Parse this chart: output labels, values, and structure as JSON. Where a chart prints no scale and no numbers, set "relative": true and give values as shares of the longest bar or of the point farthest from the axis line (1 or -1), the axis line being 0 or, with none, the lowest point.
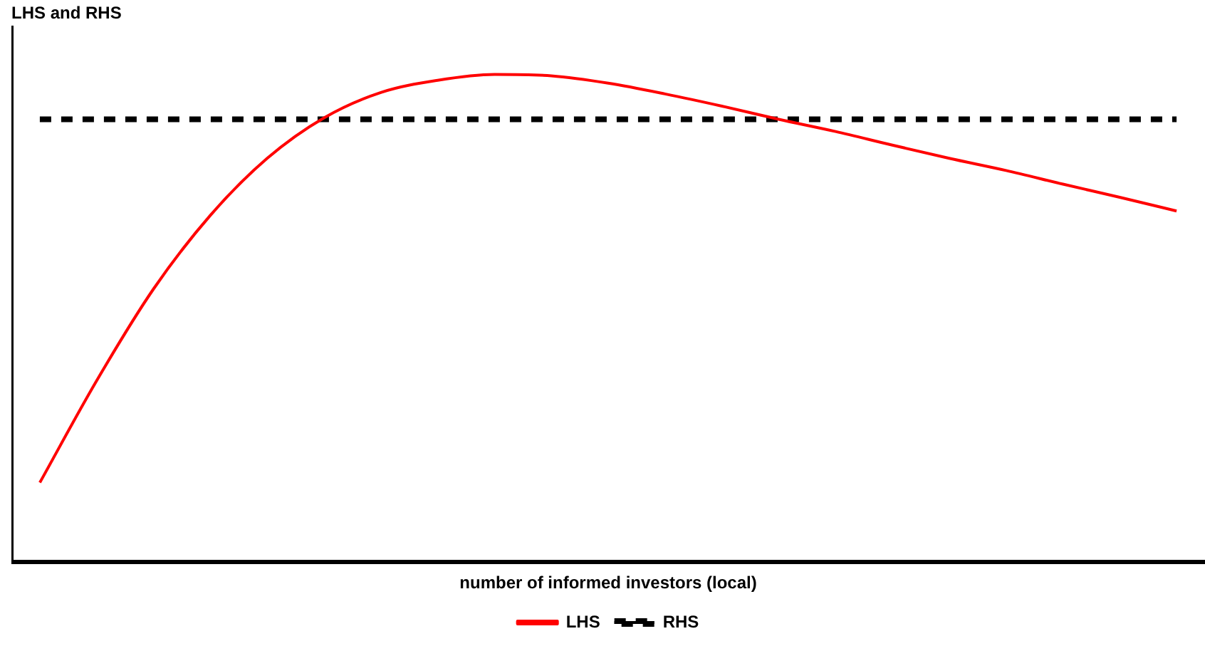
{
  "chart_data": {
    "type": "line",
    "ylabel": "LHS and RHS",
    "xlabel": "number of informed investors (local)",
    "relative": true,
    "legend": "bottom",
    "grid": false,
    "marker": "none",
    "categories": [
      null,
      null,
      null,
      null,
      null,
      null,
      null,
      null,
      null,
      null,
      null,
      null,
      null,
      null,
      null,
      null,
      null,
      null,
      null,
      null,
      null
    ],
    "series": [
      {
        "name": "LHS",
        "color": "#ff0000",
        "line_style": "solid",
        "values": [
          0.163,
          0.372,
          0.56,
          0.711,
          0.828,
          0.911,
          0.963,
          0.988,
          1,
          0.997,
          0.982,
          0.96,
          0.935,
          0.908,
          0.883,
          0.855,
          0.828,
          0.803,
          0.775,
          0.748,
          0.72
        ]
      },
      {
        "name": "RHS",
        "color": "#000000",
        "line_style": "dashed",
        "values": [
          0.908,
          0.908,
          0.908,
          0.908,
          0.908,
          0.908,
          0.908,
          0.908,
          0.908,
          0.908,
          0.908,
          0.908,
          0.908,
          0.908,
          0.908,
          0.908,
          0.908,
          0.908,
          0.908,
          0.908,
          0.908
        ]
      }
    ]
  }
}
